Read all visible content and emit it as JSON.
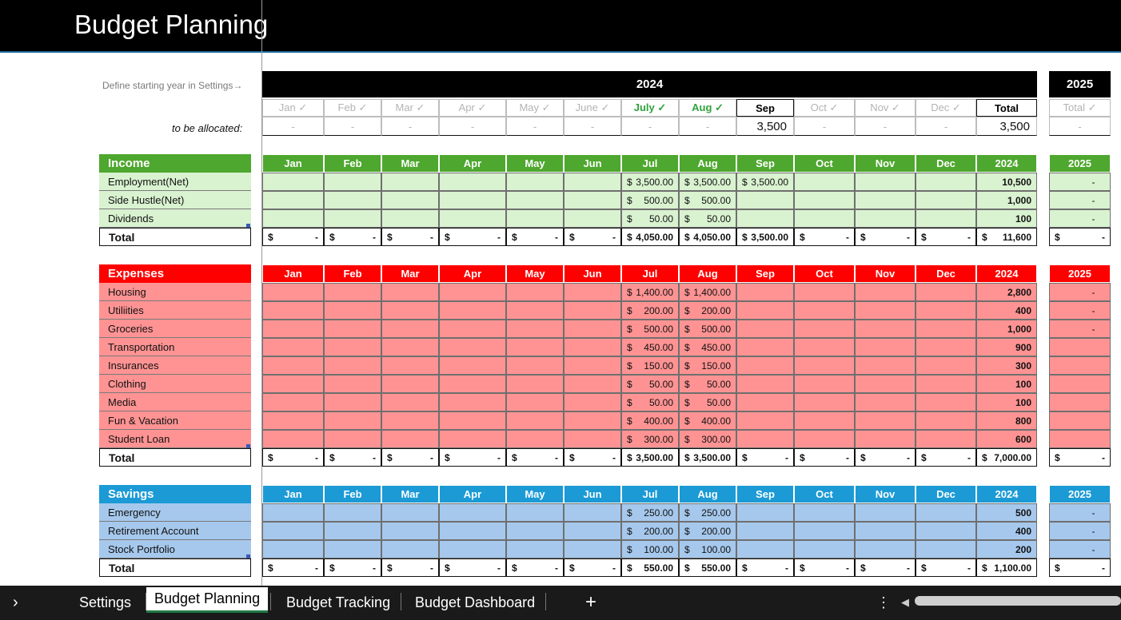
{
  "title": "Budget Planning",
  "note": "Define starting year in Settings→",
  "alloc_label": "to be allocated:",
  "year_main": "2024",
  "year_next": "2025",
  "header_months": [
    "Jan ✓",
    "Feb ✓",
    "Mar ✓",
    "Apr ✓",
    "May ✓",
    "June ✓",
    "July ✓",
    "Aug ✓",
    "Sep",
    "Oct ✓",
    "Nov ✓",
    "Dec ✓",
    "Total"
  ],
  "header_next": "Total ✓",
  "alloc_values": [
    "-",
    "-",
    "-",
    "-",
    "-",
    "-",
    "-",
    "-",
    "3,500",
    "-",
    "-",
    "-",
    "3,500"
  ],
  "alloc_next": "-",
  "dash": "-",
  "month_cols": [
    "Jan",
    "Feb",
    "Mar",
    "Apr",
    "May",
    "Jun",
    "Jul",
    "Aug",
    "Sep",
    "Oct",
    "Nov",
    "Dec",
    "2024"
  ],
  "next_col": "2025",
  "colors": {
    "income_head": "#4ea72e",
    "income_body": "#d9f2d0",
    "expense_head": "#ff0000",
    "expense_body": "#ff9393",
    "savings_head": "#1b9ad6",
    "savings_body": "#a6c8ec"
  },
  "sections": [
    {
      "name": "Income",
      "total_label": "Total",
      "rows": [
        {
          "label": "Employment(Net)",
          "jul": "3,500.00",
          "aug": "3,500.00",
          "sep": "3,500.00",
          "year": "10,500",
          "next": "-"
        },
        {
          "label": "Side Hustle(Net)",
          "jul": "500.00",
          "aug": "500.00",
          "sep": "",
          "year": "1,000",
          "next": "-"
        },
        {
          "label": "Dividends",
          "jul": "50.00",
          "aug": "50.00",
          "sep": "",
          "year": "100",
          "next": "-"
        }
      ],
      "totals": {
        "jul": "4,050.00",
        "aug": "4,050.00",
        "sep": "3,500.00",
        "year": "11,600"
      }
    },
    {
      "name": "Expenses",
      "total_label": "Total",
      "rows": [
        {
          "label": "Housing",
          "jul": "1,400.00",
          "aug": "1,400.00",
          "sep": "",
          "year": "2,800",
          "next": "-"
        },
        {
          "label": "Utiliities",
          "jul": "200.00",
          "aug": "200.00",
          "sep": "",
          "year": "400",
          "next": "-"
        },
        {
          "label": "Groceries",
          "jul": "500.00",
          "aug": "500.00",
          "sep": "",
          "year": "1,000",
          "next": "-"
        },
        {
          "label": "Transportation",
          "jul": "450.00",
          "aug": "450.00",
          "sep": "",
          "year": "900",
          "next": ""
        },
        {
          "label": "Insurances",
          "jul": "150.00",
          "aug": "150.00",
          "sep": "",
          "year": "300",
          "next": ""
        },
        {
          "label": "Clothing",
          "jul": "50.00",
          "aug": "50.00",
          "sep": "",
          "year": "100",
          "next": ""
        },
        {
          "label": "Media",
          "jul": "50.00",
          "aug": "50.00",
          "sep": "",
          "year": "100",
          "next": ""
        },
        {
          "label": "Fun & Vacation",
          "jul": "400.00",
          "aug": "400.00",
          "sep": "",
          "year": "800",
          "next": ""
        },
        {
          "label": "Student Loan",
          "jul": "300.00",
          "aug": "300.00",
          "sep": "",
          "year": "600",
          "next": ""
        }
      ],
      "totals": {
        "jul": "3,500.00",
        "aug": "3,500.00",
        "sep": "",
        "year": "7,000.00"
      }
    },
    {
      "name": "Savings",
      "total_label": "Total",
      "rows": [
        {
          "label": "Emergency",
          "jul": "250.00",
          "aug": "250.00",
          "sep": "",
          "year": "500",
          "next": "-"
        },
        {
          "label": "Retirement Account",
          "jul": "200.00",
          "aug": "200.00",
          "sep": "",
          "year": "400",
          "next": "-"
        },
        {
          "label": "Stock Portfolio",
          "jul": "100.00",
          "aug": "100.00",
          "sep": "",
          "year": "200",
          "next": "-"
        }
      ],
      "totals": {
        "jul": "550.00",
        "aug": "550.00",
        "sep": "",
        "year": "1,100.00"
      }
    }
  ],
  "currency": "$",
  "tabs": [
    "Settings",
    "Budget Planning",
    "Budget Tracking",
    "Budget Dashboard"
  ],
  "add_tab": "+",
  "more": "⋮",
  "nav_prev": "›",
  "scroll_left": "◀"
}
